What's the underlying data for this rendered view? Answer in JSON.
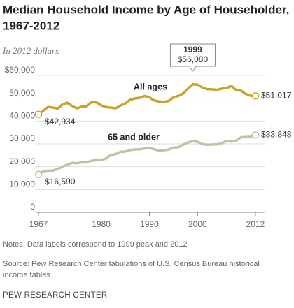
{
  "chart_data": {
    "type": "line",
    "title": [
      "Median Household Income by Age of Householder,",
      "1967-2012"
    ],
    "subtitle": "In 2012 dollars",
    "x": [
      1967,
      1968,
      1969,
      1970,
      1971,
      1972,
      1973,
      1974,
      1975,
      1976,
      1977,
      1978,
      1979,
      1980,
      1981,
      1982,
      1983,
      1984,
      1985,
      1986,
      1987,
      1988,
      1989,
      1990,
      1991,
      1992,
      1993,
      1994,
      1995,
      1996,
      1997,
      1998,
      1999,
      2000,
      2001,
      2002,
      2003,
      2004,
      2005,
      2006,
      2007,
      2008,
      2009,
      2010,
      2011,
      2012
    ],
    "xlim": [
      1967,
      2012
    ],
    "xticks": [
      1967,
      1980,
      1990,
      2000,
      2012
    ],
    "ylim": [
      0,
      60000
    ],
    "yticks": [
      0,
      {
        "value": 10000,
        "label": "10,000"
      },
      {
        "value": 20000,
        "label": "20,000"
      },
      {
        "value": 30000,
        "label": "30,000"
      },
      {
        "value": 40000,
        "label": "40,000"
      },
      {
        "value": 50000,
        "label": "50,000"
      },
      {
        "value": 60000,
        "label": "$60,000"
      }
    ],
    "grid": true,
    "series": [
      {
        "name": "All ages",
        "color": "#c9a22c",
        "values": [
          42934,
          44500,
          46200,
          45900,
          45500,
          47300,
          48000,
          46600,
          45600,
          46300,
          46500,
          48300,
          48200,
          46900,
          46100,
          45900,
          45600,
          46800,
          47700,
          49300,
          49900,
          50200,
          51000,
          50400,
          49000,
          48600,
          48400,
          48800,
          50400,
          51000,
          52100,
          54200,
          56080,
          56000,
          54700,
          54000,
          53900,
          53700,
          54200,
          54500,
          55400,
          53600,
          53300,
          51900,
          51100,
          51017
        ],
        "value_labels": [
          "$42,934",
          null,
          null,
          null,
          null,
          null,
          null,
          null,
          null,
          null,
          null,
          null,
          null,
          null,
          null,
          null,
          null,
          null,
          null,
          null,
          null,
          null,
          null,
          null,
          null,
          null,
          null,
          null,
          null,
          null,
          null,
          null,
          "$56,080",
          null,
          null,
          null,
          null,
          null,
          null,
          null,
          null,
          null,
          null,
          null,
          null,
          "$51,017"
        ]
      },
      {
        "name": "65 and older",
        "color": "#c8bea6",
        "values": [
          16590,
          18000,
          18300,
          18300,
          19000,
          20100,
          20900,
          21700,
          21500,
          21900,
          21900,
          22600,
          22800,
          22900,
          23600,
          25100,
          25500,
          26500,
          26600,
          27300,
          27600,
          27600,
          28000,
          28300,
          27600,
          27100,
          27200,
          27500,
          28400,
          28500,
          29700,
          30600,
          31200,
          30900,
          29900,
          29600,
          29700,
          29800,
          30300,
          31300,
          31000,
          31400,
          32900,
          33000,
          33100,
          33848
        ],
        "value_labels": [
          "$16,590",
          null,
          null,
          null,
          null,
          null,
          null,
          null,
          null,
          null,
          null,
          null,
          null,
          null,
          null,
          null,
          null,
          null,
          null,
          null,
          null,
          null,
          null,
          null,
          null,
          null,
          null,
          null,
          null,
          null,
          null,
          null,
          null,
          null,
          null,
          null,
          null,
          null,
          null,
          null,
          null,
          null,
          null,
          null,
          null,
          "$33,848"
        ]
      }
    ]
  },
  "notes": "Notes: Data labels correspond to 1999 peak and 2012",
  "source": [
    "Source:  Pew Research Center tabulations of U.S. Census Bureau historical",
    "income tables"
  ],
  "footer": "PEW RESEARCH CENTER"
}
